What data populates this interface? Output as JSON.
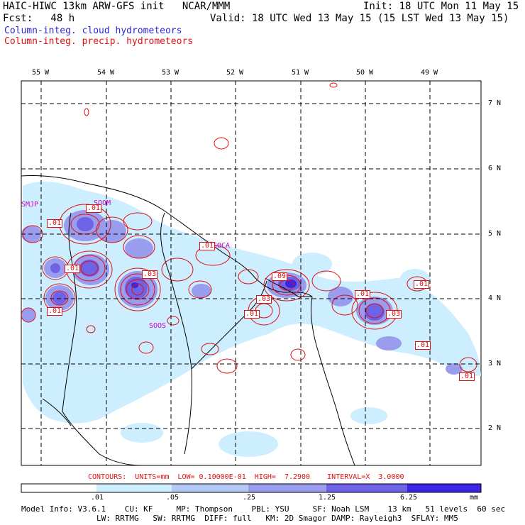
{
  "header": {
    "line1_left": "HAIC-HIWC 13km ARW-GFS init   NCAR/MMM",
    "line1_right": "Init: 18 UTC Mon 11 May 15",
    "line2_left": "Fcst:   48 h",
    "line2_right": "Valid: 18 UTC Wed 13 May 15 (15 LST Wed 13 May 15)",
    "legend_cloud": "Column-integ. cloud hydrometeors",
    "legend_precip": "Column-integ. precip. hydrometeors"
  },
  "map": {
    "lon_labels": [
      "55 W",
      "54 W",
      "53 W",
      "52 W",
      "51 W",
      "50 W",
      "49 W"
    ],
    "lat_labels": [
      "7 N",
      "6 N",
      "5 N",
      "4 N",
      "3 N",
      "2 N"
    ],
    "station_labels": [
      "SMJP",
      "SOCA",
      "SOOM",
      "SOOS"
    ],
    "contour_labels": [
      ".01",
      ".01",
      ".01",
      ".03",
      ".01",
      ".03",
      ".01",
      ".09",
      ".01",
      ".01",
      ".03",
      ".01",
      ".01",
      ".01"
    ]
  },
  "contours_info": "CONTOURS:  UNITS=mm  LOW= 0.10000E-01  HIGH=  7.2900    INTERVAL=X  3.0000",
  "colorbar": {
    "ticks": [
      ".01",
      ".05",
      ".25",
      "1.25",
      "6.25"
    ],
    "unit": "mm",
    "colors": [
      "#ffffff",
      "#cceeff",
      "#b4c8f6",
      "#9a9cee",
      "#6e62e6",
      "#3a26e0"
    ]
  },
  "footer": {
    "line1": "Model Info: V3.6.1    CU: KF     MP: Thompson    PBL: YSU     SF: Noah LSM    13 km   51 levels  60 sec",
    "line2": "                LW: RRTMG   SW: RRTMG  DIFF: full   KM: 2D Smagor DAMP: Rayleigh3  SFLAY: MM5"
  }
}
